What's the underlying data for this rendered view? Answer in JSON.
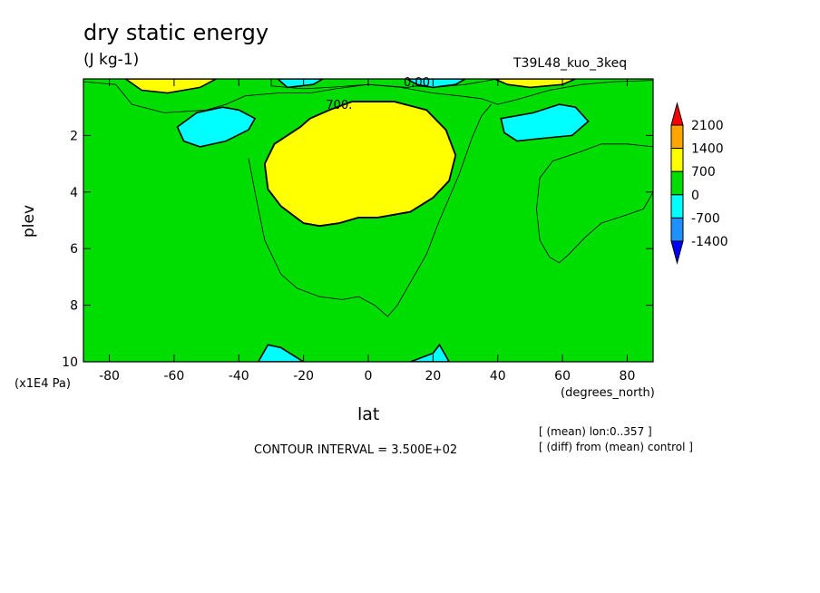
{
  "title": "dry static energy",
  "units": "(J kg-1)",
  "run_label": "T39L48_kuo_3keq",
  "contour_interval": "CONTOUR INTERVAL = 3.500E+02",
  "notes": [
    "[ (mean) lon:0..357 ]",
    "[ (diff) from (mean) control ]"
  ],
  "chart_data": {
    "type": "heatmap",
    "title": "dry static energy",
    "units": "(J kg-1)",
    "xlabel": "lat",
    "x_unit": "(degrees_north)",
    "ylabel": "plev",
    "y_scale": "(x1E4 Pa)",
    "xlim": [
      -88,
      88
    ],
    "ylim": [
      10,
      0
    ],
    "xticks": [
      -80,
      -60,
      -40,
      -20,
      0,
      20,
      40,
      60,
      80
    ],
    "xtick_labels": [
      "-80",
      "-60",
      "-40",
      "-20",
      "0",
      "20",
      "40",
      "60",
      "80"
    ],
    "yticks": [
      2,
      4,
      6,
      8,
      10
    ],
    "ytick_labels": [
      "2",
      "4",
      "6",
      "8",
      "10"
    ],
    "contour_labels": [
      {
        "text": "0.00",
        "x": 15,
        "y": 0.1
      },
      {
        "text": "700.",
        "x": -9,
        "y": 0.9
      }
    ],
    "levels": [
      -1400,
      -700,
      0,
      700,
      1400,
      2100
    ],
    "colorbar": {
      "labels": [
        "2100",
        "1400",
        "700",
        "0",
        "-700",
        "-1400"
      ],
      "colors": [
        "#ff0000",
        "#ffa500",
        "#ffff00",
        "#00dd00",
        "#00ffff",
        "#1e90ff",
        "#0000ff"
      ]
    },
    "background_color": "#00dd00",
    "regions": [
      {
        "name": "positive-core",
        "value": "700 to 1400",
        "color": "#ffff00",
        "points": [
          [
            -5,
            0.8
          ],
          [
            8,
            0.8
          ],
          [
            18,
            1.1
          ],
          [
            24,
            1.8
          ],
          [
            27,
            2.7
          ],
          [
            25,
            3.6
          ],
          [
            20,
            4.2
          ],
          [
            13,
            4.7
          ],
          [
            3,
            4.9
          ],
          [
            -3,
            4.9
          ],
          [
            -9,
            5.1
          ],
          [
            -15,
            5.2
          ],
          [
            -20,
            5.1
          ],
          [
            -27,
            4.5
          ],
          [
            -31,
            3.9
          ],
          [
            -32,
            3.0
          ],
          [
            -29,
            2.3
          ],
          [
            -21,
            1.7
          ],
          [
            -18,
            1.4
          ],
          [
            -12,
            1.1
          ]
        ]
      },
      {
        "name": "positive-top-left",
        "value": "700 to 1400",
        "color": "#ffff00",
        "points": [
          [
            -75,
            0
          ],
          [
            -47,
            0
          ],
          [
            -52,
            0.3
          ],
          [
            -62,
            0.5
          ],
          [
            -70,
            0.4
          ]
        ]
      },
      {
        "name": "positive-top-right",
        "value": "700 to 1400",
        "color": "#ffff00",
        "points": [
          [
            39,
            0
          ],
          [
            64,
            0
          ],
          [
            60,
            0.2
          ],
          [
            50,
            0.3
          ],
          [
            43,
            0.2
          ]
        ]
      },
      {
        "name": "negative-left",
        "value": "-700 to 0",
        "color": "#00ffff",
        "points": [
          [
            -59,
            1.7
          ],
          [
            -53,
            1.2
          ],
          [
            -45,
            1.0
          ],
          [
            -40,
            1.1
          ],
          [
            -35,
            1.4
          ],
          [
            -37,
            1.8
          ],
          [
            -44,
            2.2
          ],
          [
            -52,
            2.4
          ],
          [
            -57,
            2.2
          ]
        ]
      },
      {
        "name": "negative-right",
        "value": "-700 to 0",
        "color": "#00ffff",
        "points": [
          [
            41,
            1.4
          ],
          [
            51,
            1.2
          ],
          [
            59,
            0.9
          ],
          [
            64,
            1.0
          ],
          [
            68,
            1.5
          ],
          [
            63,
            2.0
          ],
          [
            54,
            2.1
          ],
          [
            46,
            2.2
          ],
          [
            42,
            1.9
          ]
        ]
      },
      {
        "name": "negative-top-center-left",
        "value": "-700 to 0",
        "color": "#00ffff",
        "points": [
          [
            -28,
            0
          ],
          [
            -14,
            0
          ],
          [
            -17,
            0.2
          ],
          [
            -25,
            0.3
          ]
        ]
      },
      {
        "name": "negative-top-center-right",
        "value": "-700 to 0",
        "color": "#00ffff",
        "points": [
          [
            12,
            0
          ],
          [
            30,
            0
          ],
          [
            27,
            0.2
          ],
          [
            20,
            0.3
          ],
          [
            15,
            0.2
          ]
        ]
      },
      {
        "name": "negative-bottom-left",
        "value": "-700 to 0",
        "color": "#00ffff",
        "points": [
          [
            -34,
            10
          ],
          [
            -31,
            9.4
          ],
          [
            -27,
            9.5
          ],
          [
            -20,
            10
          ]
        ]
      },
      {
        "name": "negative-bottom-right",
        "value": "-700 to 0",
        "color": "#00ffff",
        "points": [
          [
            13,
            10
          ],
          [
            20,
            9.7
          ],
          [
            22,
            9.4
          ],
          [
            25,
            10
          ]
        ]
      }
    ],
    "contour_lines": [
      {
        "name": "contour-350-upper",
        "points": [
          [
            -88,
            0.1
          ],
          [
            -78,
            0.2
          ],
          [
            -73,
            0.9
          ],
          [
            -63,
            1.2
          ],
          [
            -50,
            1.1
          ],
          [
            -44,
            0.9
          ],
          [
            -38,
            0.6
          ],
          [
            -28,
            0.5
          ],
          [
            -18,
            0.5
          ],
          [
            -10,
            0.35
          ],
          [
            0,
            0.2
          ],
          [
            10,
            0.3
          ],
          [
            20,
            0.5
          ],
          [
            28,
            0.6
          ],
          [
            35,
            0.7
          ],
          [
            40,
            0.9
          ],
          [
            47,
            0.7
          ],
          [
            56,
            0.4
          ],
          [
            66,
            0.2
          ],
          [
            76,
            0.1
          ],
          [
            88,
            0.05
          ]
        ]
      },
      {
        "name": "contour-350-trough",
        "points": [
          [
            -37,
            2.8
          ],
          [
            -35,
            4.0
          ],
          [
            -32,
            5.7
          ],
          [
            -27,
            6.9
          ],
          [
            -22,
            7.4
          ],
          [
            -15,
            7.7
          ],
          [
            -8,
            7.8
          ],
          [
            -3,
            7.7
          ],
          [
            2,
            8.0
          ],
          [
            6,
            8.4
          ],
          [
            9,
            8.0
          ],
          [
            13,
            7.2
          ],
          [
            18,
            6.2
          ],
          [
            22,
            5.0
          ],
          [
            28,
            3.4
          ],
          [
            32,
            2.1
          ],
          [
            35,
            1.3
          ],
          [
            38,
            0.9
          ]
        ]
      },
      {
        "name": "contour-350-right",
        "points": [
          [
            88,
            2.4
          ],
          [
            80,
            2.3
          ],
          [
            72,
            2.3
          ],
          [
            65,
            2.6
          ],
          [
            57,
            2.9
          ],
          [
            53,
            3.5
          ],
          [
            52,
            4.6
          ],
          [
            53,
            5.7
          ],
          [
            56,
            6.3
          ],
          [
            59,
            6.5
          ],
          [
            62,
            6.2
          ],
          [
            67,
            5.6
          ],
          [
            72,
            5.1
          ],
          [
            80,
            4.8
          ],
          [
            85,
            4.6
          ],
          [
            88,
            4.0
          ]
        ]
      },
      {
        "name": "contour-0-top",
        "points": [
          [
            -30,
            0
          ],
          [
            -30,
            0.25
          ],
          [
            -20,
            0.35
          ],
          [
            -12,
            0.3
          ],
          [
            0,
            0.2
          ],
          [
            12,
            0.3
          ],
          [
            15,
            0.25
          ],
          [
            20,
            0.3
          ],
          [
            30,
            0.2
          ],
          [
            35,
            0.1
          ],
          [
            40,
            0
          ]
        ]
      },
      {
        "name": "contour-700",
        "points": [
          [
            -5,
            0.8
          ],
          [
            8,
            0.8
          ],
          [
            18,
            1.1
          ],
          [
            24,
            1.8
          ],
          [
            27,
            2.7
          ],
          [
            25,
            3.6
          ],
          [
            20,
            4.2
          ],
          [
            13,
            4.7
          ],
          [
            3,
            4.9
          ],
          [
            -3,
            4.9
          ],
          [
            -9,
            5.1
          ],
          [
            -15,
            5.2
          ],
          [
            -20,
            5.1
          ],
          [
            -27,
            4.5
          ],
          [
            -31,
            3.9
          ],
          [
            -32,
            3.0
          ],
          [
            -29,
            2.3
          ],
          [
            -21,
            1.7
          ],
          [
            -18,
            1.4
          ],
          [
            -12,
            1.1
          ],
          [
            -5,
            0.8
          ]
        ],
        "closed": true,
        "bold": true
      }
    ],
    "grid": false,
    "legend": "right"
  }
}
